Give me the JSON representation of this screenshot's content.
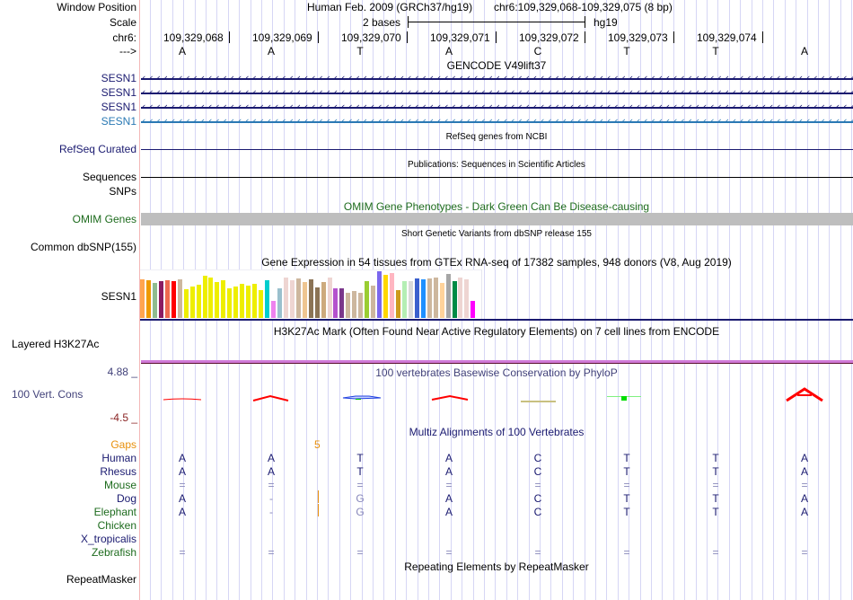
{
  "header": {
    "window_position_label": "Window Position",
    "scale_label": "Scale",
    "chrom_label": "chr6:",
    "strand_label": "--->",
    "assembly_title": "Human Feb. 2009 (GRCh37/hg19)",
    "position": "chr6:109,329,068-109,329,075 (8 bp)",
    "scale_text": "2 bases",
    "scale_db": "hg19",
    "coordinates": [
      "109,329,068",
      "109,329,069",
      "109,329,070",
      "109,329,071",
      "109,329,072",
      "109,329,073",
      "109,329,074"
    ],
    "bases": [
      "A",
      "A",
      "T",
      "A",
      "C",
      "T",
      "T",
      "A"
    ]
  },
  "tracks": {
    "gencode": {
      "title": "GENCODE V49lift37",
      "items": [
        {
          "label": "SESN1",
          "color": "#1a1a70"
        },
        {
          "label": "SESN1",
          "color": "#1a1a70"
        },
        {
          "label": "SESN1",
          "color": "#1a1a70"
        },
        {
          "label": "SESN1",
          "color": "#2a79b4"
        }
      ]
    },
    "refseq": {
      "label": "RefSeq Curated",
      "title": "RefSeq genes from NCBI"
    },
    "publications": {
      "label": "Sequences",
      "title": "Publications: Sequences in Scientific Articles"
    },
    "snps_pub": {
      "label": "SNPs"
    },
    "omim": {
      "label": "OMIM Genes",
      "title": "OMIM Gene Phenotypes - Dark Green Can Be Disease-causing"
    },
    "dbsnp": {
      "label": "Common dbSNP(155)",
      "title": "Short Genetic Variants from dbSNP release 155"
    },
    "gtex": {
      "label": "SESN1",
      "title": "Gene Expression in 54 tissues from GTEx RNA-seq of 17382 samples, 948 donors (V8, Aug 2019)"
    },
    "h3k27ac": {
      "label": "Layered H3K27Ac",
      "title": "H3K27Ac Mark (Often Found Near Active Regulatory Elements) on 7 cell lines from ENCODE"
    },
    "phylop": {
      "label": "100 Vert. Cons",
      "title": "100 vertebrates Basewise Conservation by PhyloP",
      "max_label": "4.88 _",
      "min_label": "-4.5 _"
    },
    "multiz": {
      "title": "Multiz Alignments of 100 Vertebrates",
      "gaps_label": "Gaps",
      "gap_count": "5",
      "species": [
        {
          "name": "Human",
          "color": "#1a1a70",
          "bases": [
            "A",
            "A",
            "T",
            "A",
            "C",
            "T",
            "T",
            "A"
          ]
        },
        {
          "name": "Rhesus",
          "color": "#1a1a70",
          "bases": [
            "A",
            "A",
            "T",
            "A",
            "C",
            "T",
            "T",
            "A"
          ]
        },
        {
          "name": "Mouse",
          "color": "#1d6b1d",
          "bases": [
            "=",
            "=",
            "=",
            "=",
            "=",
            "=",
            "=",
            "="
          ]
        },
        {
          "name": "Dog",
          "color": "#1a1a70",
          "bases": [
            "A",
            "-",
            "G",
            "A",
            "C",
            "T",
            "T",
            "A"
          ]
        },
        {
          "name": "Elephant",
          "color": "#1d6b1d",
          "bases": [
            "A",
            "-",
            "G",
            "A",
            "C",
            "T",
            "T",
            "A"
          ]
        },
        {
          "name": "Chicken",
          "color": "#1d6b1d",
          "bases": [
            "",
            "",
            "",
            "",
            "",
            "",
            "",
            ""
          ]
        },
        {
          "name": "X_tropicalis",
          "color": "#1a1a70",
          "bases": [
            "",
            "",
            "",
            "",
            "",
            "",
            "",
            ""
          ]
        },
        {
          "name": "Zebrafish",
          "color": "#1d6b1d",
          "bases": [
            "=",
            "=",
            "=",
            "=",
            "=",
            "=",
            "=",
            "="
          ]
        }
      ]
    },
    "repeatmasker": {
      "label": "RepeatMasker",
      "title": "Repeating Elements by RepeatMasker"
    }
  },
  "chart_data": {
    "type": "bar",
    "title": "Gene Expression in 54 tissues from GTEx RNA-seq of 17382 samples, 948 donors (V8, Aug 2019)",
    "xlabel": "",
    "ylabel": "",
    "ylim": [
      0,
      1
    ],
    "values": [
      0.8,
      0.78,
      0.72,
      0.76,
      0.77,
      0.75,
      0.8,
      0.6,
      0.65,
      0.68,
      0.87,
      0.84,
      0.74,
      0.77,
      0.62,
      0.65,
      0.7,
      0.66,
      0.7,
      0.58,
      0.78,
      0.36,
      0.62,
      0.84,
      0.78,
      0.82,
      0.74,
      0.8,
      0.63,
      0.74,
      0.84,
      0.62,
      0.62,
      0.52,
      0.56,
      0.52,
      0.75,
      0.66,
      0.96,
      0.88,
      0.93,
      0.58,
      0.75,
      0.75,
      0.82,
      0.8,
      0.82,
      0.84,
      0.72,
      0.9,
      0.75,
      0.84,
      0.79,
      0.35
    ],
    "colors": [
      "#ffa54f",
      "#ee9a00",
      "#8fbc8f",
      "#8b1c62",
      "#ee6a50",
      "#ff0000",
      "#cdb79e",
      "#eeee00",
      "#eeee00",
      "#eeee00",
      "#eeee00",
      "#eeee00",
      "#eeee00",
      "#eeee00",
      "#eeee00",
      "#eeee00",
      "#eeee00",
      "#eeee00",
      "#eeee00",
      "#eeee00",
      "#00cdcd",
      "#ee82ee",
      "#9ac0cd",
      "#eed5d2",
      "#eed5d2",
      "#cdb79e",
      "#eec591",
      "#8b7355",
      "#8b7355",
      "#cdaa7d",
      "#eed5d2",
      "#b452cd",
      "#7a378b",
      "#cdb79e",
      "#cdb79e",
      "#cdb79e",
      "#9acd32",
      "#cdb79e",
      "#7b68ee",
      "#ffd700",
      "#ffb6c1",
      "#cd9b1d",
      "#b4eeb4",
      "#d9d9d9",
      "#3a5fcd",
      "#1e90ff",
      "#cdb79e",
      "#cdb79e",
      "#ffd39b",
      "#a6a6a6",
      "#008b45",
      "#eed5d2",
      "#eed5d2",
      "#ff00ff"
    ]
  }
}
